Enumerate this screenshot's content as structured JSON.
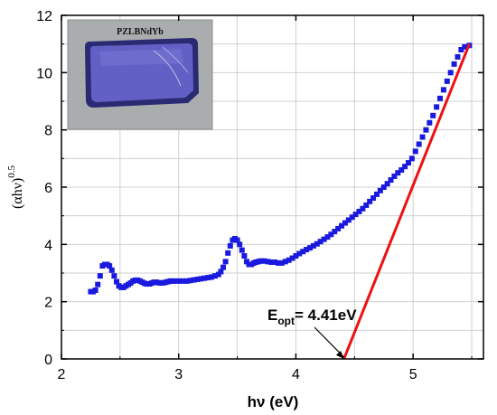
{
  "colors": {
    "marker": "#1a1adf",
    "fit_line": "#ee1111",
    "grid": "#d0d0d0"
  },
  "chart_data": {
    "type": "scatter",
    "xlabel": "hν (eV)",
    "ylabel_main": "(αhν)",
    "ylabel_sup": "0.5",
    "xlim": [
      2,
      5.6
    ],
    "ylim": [
      0,
      12
    ],
    "x_ticks": [
      "2",
      "3",
      "4",
      "5"
    ],
    "y_ticks": [
      "0",
      "2",
      "4",
      "6",
      "8",
      "10",
      "12"
    ],
    "grid": true,
    "inset_label": "PZLBNdYb",
    "annotation": {
      "base": "E",
      "sub": "opt",
      "value": "= 4.41eV",
      "points_to": [
        4.41,
        0
      ]
    },
    "fit_line": {
      "x": [
        4.41,
        5.48
      ],
      "y": [
        0,
        11.0
      ]
    },
    "series": [
      {
        "marker": "square",
        "x": [
          2.25,
          2.27,
          2.29,
          2.31,
          2.33,
          2.35,
          2.37,
          2.39,
          2.41,
          2.43,
          2.45,
          2.47,
          2.49,
          2.51,
          2.53,
          2.55,
          2.57,
          2.59,
          2.61,
          2.63,
          2.65,
          2.67,
          2.69,
          2.71,
          2.73,
          2.75,
          2.77,
          2.79,
          2.81,
          2.83,
          2.85,
          2.87,
          2.89,
          2.91,
          2.93,
          2.95,
          2.98,
          3.01,
          3.04,
          3.07,
          3.1,
          3.13,
          3.16,
          3.19,
          3.22,
          3.25,
          3.28,
          3.31,
          3.34,
          3.36,
          3.38,
          3.4,
          3.42,
          3.44,
          3.46,
          3.48,
          3.5,
          3.52,
          3.54,
          3.56,
          3.58,
          3.6,
          3.62,
          3.64,
          3.66,
          3.68,
          3.7,
          3.73,
          3.76,
          3.79,
          3.82,
          3.85,
          3.88,
          3.91,
          3.94,
          3.97,
          4.0,
          4.03,
          4.06,
          4.09,
          4.12,
          4.15,
          4.18,
          4.21,
          4.24,
          4.27,
          4.3,
          4.33,
          4.36,
          4.39,
          4.42,
          4.45,
          4.48,
          4.51,
          4.54,
          4.57,
          4.6,
          4.63,
          4.66,
          4.69,
          4.72,
          4.75,
          4.78,
          4.81,
          4.84,
          4.87,
          4.9,
          4.93,
          4.96,
          4.99,
          5.02,
          5.05,
          5.08,
          5.11,
          5.14,
          5.17,
          5.2,
          5.23,
          5.26,
          5.29,
          5.32,
          5.35,
          5.38,
          5.41,
          5.44,
          5.48
        ],
        "y": [
          2.35,
          2.35,
          2.4,
          2.6,
          2.9,
          3.25,
          3.3,
          3.3,
          3.25,
          3.1,
          2.9,
          2.7,
          2.55,
          2.5,
          2.5,
          2.55,
          2.6,
          2.65,
          2.72,
          2.75,
          2.75,
          2.72,
          2.68,
          2.64,
          2.62,
          2.62,
          2.65,
          2.68,
          2.68,
          2.66,
          2.65,
          2.66,
          2.68,
          2.7,
          2.72,
          2.72,
          2.72,
          2.72,
          2.72,
          2.72,
          2.74,
          2.76,
          2.78,
          2.8,
          2.82,
          2.84,
          2.86,
          2.9,
          2.95,
          3.05,
          3.2,
          3.4,
          3.7,
          3.95,
          4.15,
          4.2,
          4.15,
          4.0,
          3.8,
          3.6,
          3.4,
          3.3,
          3.3,
          3.35,
          3.38,
          3.4,
          3.42,
          3.42,
          3.4,
          3.38,
          3.38,
          3.35,
          3.35,
          3.4,
          3.45,
          3.52,
          3.6,
          3.68,
          3.75,
          3.82,
          3.88,
          3.95,
          4.02,
          4.1,
          4.18,
          4.26,
          4.35,
          4.45,
          4.55,
          4.65,
          4.75,
          4.85,
          4.95,
          5.05,
          5.15,
          5.25,
          5.37,
          5.5,
          5.62,
          5.75,
          5.88,
          6.0,
          6.12,
          6.25,
          6.38,
          6.5,
          6.6,
          6.72,
          6.85,
          7.0,
          7.25,
          7.5,
          7.75,
          8.0,
          8.25,
          8.5,
          8.8,
          9.1,
          9.4,
          9.7,
          10.0,
          10.3,
          10.55,
          10.8,
          10.9,
          10.95
        ]
      }
    ]
  }
}
